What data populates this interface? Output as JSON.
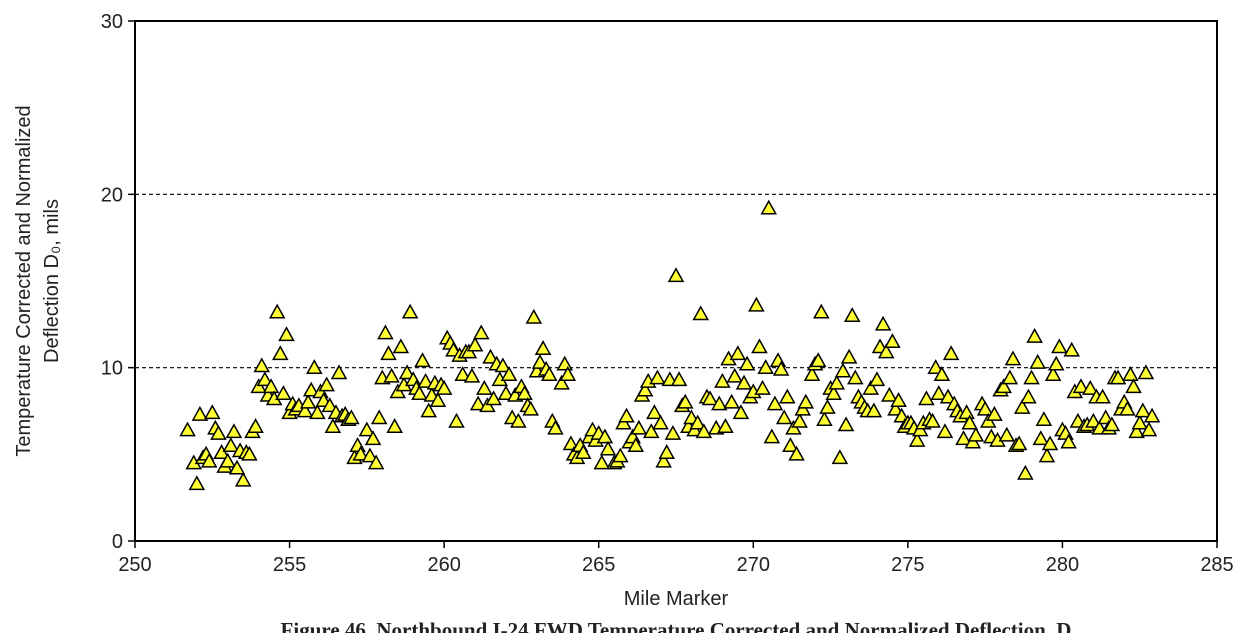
{
  "chart_data": {
    "type": "scatter",
    "xlabel": "Mile Marker",
    "ylabel_lines": [
      "Temperature Corrected and Normalized",
      "Deflection D₀, mils"
    ],
    "caption": "Figure 46. Northbound I-24 FWD Temperature Corrected and Normalized Deflection, D",
    "xlim": [
      250,
      285
    ],
    "xticks": [
      250,
      255,
      260,
      265,
      270,
      275,
      280,
      285
    ],
    "ylim": [
      0,
      30
    ],
    "yticks": [
      0,
      10,
      20,
      30
    ],
    "hlines": [
      10,
      20
    ],
    "series": [
      {
        "color": "#ffff33",
        "x": [
          251.7,
          251.9,
          252.0,
          252.1,
          252.2,
          252.3,
          252.4,
          252.5,
          252.6,
          252.7,
          252.8,
          252.9,
          253.0,
          253.1,
          253.2,
          253.3,
          253.4,
          253.5,
          253.6,
          253.7,
          253.8,
          253.9,
          254.0,
          254.1,
          254.2,
          254.3,
          254.4,
          254.5,
          254.6,
          254.7,
          254.8,
          254.9,
          255.0,
          255.1,
          255.2,
          255.3,
          255.5,
          255.6,
          255.7,
          255.8,
          255.9,
          256.0,
          256.1,
          256.2,
          256.3,
          256.4,
          256.5,
          256.6,
          256.7,
          256.8,
          256.9,
          257.0,
          257.1,
          257.2,
          257.3,
          257.5,
          257.6,
          257.7,
          257.8,
          257.9,
          258.0,
          258.1,
          258.2,
          258.3,
          258.4,
          258.5,
          258.6,
          258.7,
          258.8,
          258.9,
          259.0,
          259.1,
          259.2,
          259.3,
          259.4,
          259.5,
          259.6,
          259.7,
          259.8,
          259.9,
          260.0,
          260.1,
          260.2,
          260.3,
          260.4,
          260.5,
          260.6,
          260.7,
          260.8,
          260.9,
          261.0,
          261.1,
          261.2,
          261.3,
          261.4,
          261.5,
          261.6,
          261.7,
          261.8,
          261.9,
          262.0,
          262.1,
          262.2,
          262.3,
          262.4,
          262.5,
          262.6,
          262.7,
          262.8,
          262.9,
          263.0,
          263.1,
          263.2,
          263.3,
          263.4,
          263.5,
          263.6,
          263.8,
          263.9,
          264.0,
          264.1,
          264.2,
          264.3,
          264.4,
          264.5,
          264.7,
          264.8,
          264.9,
          265.0,
          265.1,
          265.2,
          265.3,
          265.5,
          265.6,
          265.7,
          265.8,
          265.9,
          266.0,
          266.1,
          266.2,
          266.3,
          266.4,
          266.5,
          266.6,
          266.7,
          266.8,
          266.9,
          267.0,
          267.1,
          267.2,
          267.3,
          267.4,
          267.5,
          267.6,
          267.7,
          267.8,
          267.9,
          268.0,
          268.1,
          268.2,
          268.3,
          268.4,
          268.5,
          268.6,
          268.8,
          268.9,
          269.0,
          269.1,
          269.2,
          269.3,
          269.4,
          269.5,
          269.6,
          269.7,
          269.8,
          269.9,
          270.0,
          270.1,
          270.2,
          270.3,
          270.4,
          270.5,
          270.6,
          270.7,
          270.8,
          270.9,
          271.0,
          271.1,
          271.2,
          271.3,
          271.4,
          271.5,
          271.6,
          271.7,
          271.9,
          272.0,
          272.1,
          272.2,
          272.3,
          272.4,
          272.5,
          272.6,
          272.7,
          272.8,
          272.9,
          273.0,
          273.1,
          273.2,
          273.3,
          273.4,
          273.5,
          273.6,
          273.7,
          273.8,
          273.9,
          274.0,
          274.1,
          274.2,
          274.3,
          274.4,
          274.5,
          274.6,
          274.7,
          274.8,
          274.9,
          275.0,
          275.1,
          275.2,
          275.3,
          275.4,
          275.5,
          275.6,
          275.7,
          275.8,
          275.9,
          276.0,
          276.1,
          276.2,
          276.3,
          276.4,
          276.5,
          276.6,
          276.7,
          276.8,
          276.9,
          277.0,
          277.1,
          277.2,
          277.4,
          277.5,
          277.6,
          277.7,
          277.8,
          277.9,
          278.0,
          278.1,
          278.2,
          278.3,
          278.4,
          278.5,
          278.6,
          278.7,
          278.8,
          278.9,
          279.0,
          279.1,
          279.2,
          279.3,
          279.4,
          279.5,
          279.6,
          279.7,
          279.8,
          279.9,
          280.0,
          280.1,
          280.2,
          280.3,
          280.4,
          280.5,
          280.6,
          280.7,
          280.8,
          280.9,
          281.0,
          281.1,
          281.2,
          281.3,
          281.4,
          281.5,
          281.6,
          281.7,
          281.8,
          281.9,
          282.0,
          282.1,
          282.2,
          282.3,
          282.4,
          282.5,
          282.6,
          282.7,
          282.8,
          282.9
        ],
        "values": [
          6.4,
          4.5,
          3.3,
          7.3,
          4.8,
          5.0,
          4.6,
          7.4,
          6.5,
          6.2,
          5.1,
          4.3,
          4.6,
          5.5,
          6.3,
          4.2,
          5.2,
          3.5,
          5.1,
          5.0,
          6.3,
          6.6,
          8.9,
          10.1,
          9.3,
          8.4,
          8.9,
          8.2,
          13.2,
          10.8,
          8.5,
          11.9,
          7.4,
          7.9,
          7.6,
          7.8,
          7.5,
          8.0,
          8.7,
          10.0,
          7.4,
          8.6,
          8.1,
          9.0,
          7.8,
          6.6,
          7.4,
          9.7,
          7.2,
          7.3,
          7.0,
          7.1,
          4.8,
          5.5,
          5.0,
          6.4,
          4.9,
          5.9,
          4.5,
          7.1,
          9.4,
          12.0,
          10.8,
          9.5,
          6.6,
          8.6,
          11.2,
          9.0,
          9.7,
          13.2,
          9.3,
          8.8,
          8.5,
          10.4,
          9.2,
          7.5,
          8.4,
          9.1,
          8.1,
          9.0,
          8.8,
          11.7,
          11.4,
          11.0,
          6.9,
          10.7,
          9.6,
          10.9,
          10.9,
          9.5,
          11.3,
          7.9,
          12.0,
          8.8,
          7.8,
          10.6,
          8.2,
          10.2,
          9.3,
          10.1,
          8.5,
          9.6,
          7.1,
          8.4,
          6.9,
          8.9,
          8.5,
          7.8,
          7.6,
          12.9,
          9.8,
          10.3,
          11.1,
          9.9,
          9.6,
          6.9,
          6.5,
          9.1,
          10.2,
          9.6,
          5.6,
          5.0,
          4.8,
          5.5,
          5.1,
          6.0,
          6.4,
          5.8,
          6.2,
          4.5,
          6.0,
          5.3,
          4.5,
          4.6,
          4.9,
          6.8,
          7.2,
          5.7,
          6.0,
          5.5,
          6.5,
          8.4,
          8.7,
          9.2,
          6.3,
          7.4,
          9.4,
          6.8,
          4.6,
          5.1,
          9.3,
          6.2,
          15.3,
          9.3,
          7.8,
          8.0,
          6.6,
          7.1,
          6.4,
          6.8,
          13.1,
          6.3,
          8.3,
          8.2,
          6.5,
          7.9,
          9.2,
          6.6,
          10.5,
          8.0,
          9.5,
          10.8,
          7.4,
          9.1,
          10.2,
          8.3,
          8.6,
          13.6,
          11.2,
          8.8,
          10.0,
          19.2,
          6.0,
          7.9,
          10.4,
          9.9,
          7.1,
          8.3,
          5.5,
          6.5,
          5.0,
          6.9,
          7.6,
          8.0,
          9.6,
          10.2,
          10.4,
          13.2,
          7.0,
          7.7,
          8.8,
          8.5,
          9.1,
          4.8,
          9.8,
          6.7,
          10.6,
          13.0,
          9.4,
          8.3,
          8.0,
          7.7,
          7.5,
          8.8,
          7.5,
          9.3,
          11.2,
          12.5,
          10.9,
          8.4,
          11.5,
          7.6,
          8.1,
          7.2,
          6.6,
          6.8,
          6.8,
          6.5,
          5.8,
          6.4,
          6.8,
          8.2,
          7.0,
          6.9,
          10.0,
          8.5,
          9.6,
          6.3,
          8.3,
          10.8,
          7.9,
          7.5,
          7.2,
          5.9,
          7.4,
          6.8,
          5.7,
          6.1,
          7.9,
          7.6,
          6.9,
          6.0,
          7.3,
          5.8,
          8.7,
          8.9,
          6.1,
          9.4,
          10.5,
          5.5,
          5.6,
          7.7,
          3.9,
          8.3,
          9.4,
          11.8,
          10.3,
          5.9,
          7.0,
          4.9,
          5.6,
          9.6,
          10.2,
          11.2,
          6.4,
          6.2,
          5.7,
          11.0,
          8.6,
          6.9,
          8.9,
          6.6,
          6.7,
          8.8,
          6.9,
          8.3,
          6.5,
          8.3,
          7.1,
          6.5,
          6.7,
          9.4,
          9.4,
          7.6,
          8.0,
          7.6,
          9.6,
          8.9,
          6.3,
          6.8,
          7.5,
          9.7,
          6.4,
          7.2
        ]
      }
    ]
  }
}
